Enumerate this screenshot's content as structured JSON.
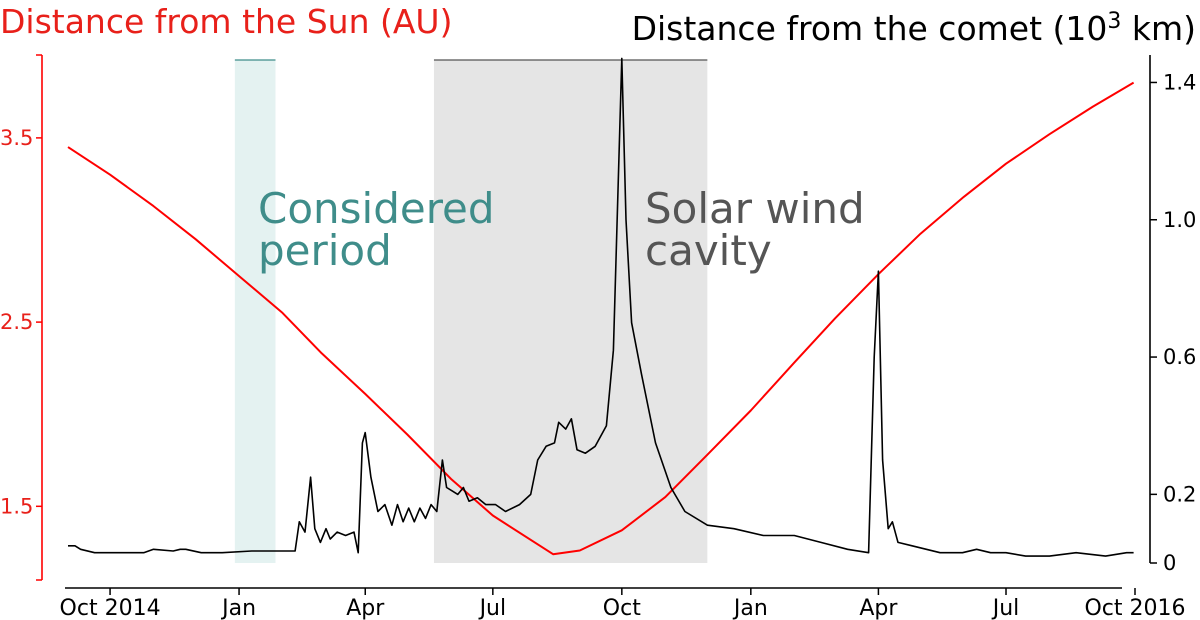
{
  "chart_data": {
    "type": "line",
    "title_left": "Distance from the Sun (AU)",
    "title_right_prefix": "Distance from the comet (10",
    "title_right_exp": "3",
    "title_right_suffix": " km)",
    "left_axis": {
      "range": [
        1.1,
        3.95
      ],
      "ticks": [
        "1.5",
        "2.5",
        "3.5"
      ],
      "color": "#ff0000"
    },
    "right_axis": {
      "range": [
        0,
        1.48
      ],
      "ticks": [
        "0",
        "0.2",
        "0.6",
        "1.0",
        "1.4"
      ],
      "color": "#000000"
    },
    "x_axis": {
      "range": [
        "2014-09-01",
        "2016-10-01"
      ],
      "tick_dates": [
        "2014-10-01",
        "2015-01-01",
        "2015-04-01",
        "2015-07-01",
        "2015-10-01",
        "2016-01-01",
        "2016-04-01",
        "2016-07-01",
        "2016-10-01"
      ],
      "tick_labels": [
        "Oct 2014",
        "Jan",
        "Apr",
        "Jul",
        "Oct",
        "Jan",
        "Apr",
        "Jul",
        "Oct 2016"
      ]
    },
    "shaded_regions": [
      {
        "name": "considered-period",
        "start": "2014-12-29",
        "end": "2015-01-27",
        "color": "#e4f2f1",
        "label_lines": [
          "Considered",
          "period"
        ],
        "label_color": "#3f8d8a"
      },
      {
        "name": "solar-wind-cavity",
        "start": "2015-05-20",
        "end": "2015-12-01",
        "color": "#e5e5e5",
        "label_lines": [
          "Solar wind",
          "cavity"
        ],
        "label_color": "#555555"
      }
    ],
    "series": [
      {
        "axis": "left",
        "color": "#ff0000",
        "points": [
          [
            "2014-09-01",
            3.45
          ],
          [
            "2014-10-01",
            3.3
          ],
          [
            "2014-11-01",
            3.13
          ],
          [
            "2014-12-01",
            2.95
          ],
          [
            "2015-01-01",
            2.75
          ],
          [
            "2015-02-01",
            2.55
          ],
          [
            "2015-03-01",
            2.33
          ],
          [
            "2015-04-01",
            2.11
          ],
          [
            "2015-05-01",
            1.89
          ],
          [
            "2015-06-01",
            1.65
          ],
          [
            "2015-07-01",
            1.45
          ],
          [
            "2015-08-13",
            1.24
          ],
          [
            "2015-09-01",
            1.26
          ],
          [
            "2015-10-01",
            1.37
          ],
          [
            "2015-11-01",
            1.55
          ],
          [
            "2015-12-01",
            1.78
          ],
          [
            "2016-01-01",
            2.02
          ],
          [
            "2016-02-01",
            2.28
          ],
          [
            "2016-03-01",
            2.52
          ],
          [
            "2016-04-01",
            2.76
          ],
          [
            "2016-05-01",
            2.98
          ],
          [
            "2016-06-01",
            3.18
          ],
          [
            "2016-07-01",
            3.36
          ],
          [
            "2016-08-01",
            3.52
          ],
          [
            "2016-09-01",
            3.67
          ],
          [
            "2016-09-30",
            3.8
          ]
        ]
      },
      {
        "axis": "right",
        "color": "#000000",
        "points": [
          [
            "2014-09-01",
            0.05
          ],
          [
            "2014-09-06",
            0.05
          ],
          [
            "2014-09-10",
            0.04
          ],
          [
            "2014-09-20",
            0.03
          ],
          [
            "2014-10-05",
            0.03
          ],
          [
            "2014-10-20",
            0.03
          ],
          [
            "2014-10-25",
            0.03
          ],
          [
            "2014-11-01",
            0.04
          ],
          [
            "2014-11-15",
            0.035
          ],
          [
            "2014-11-20",
            0.04
          ],
          [
            "2014-11-24",
            0.04
          ],
          [
            "2014-12-05",
            0.03
          ],
          [
            "2014-12-20",
            0.03
          ],
          [
            "2015-01-10",
            0.035
          ],
          [
            "2015-01-31",
            0.035
          ],
          [
            "2015-02-10",
            0.035
          ],
          [
            "2015-02-13",
            0.12
          ],
          [
            "2015-02-17",
            0.09
          ],
          [
            "2015-02-21",
            0.25
          ],
          [
            "2015-02-24",
            0.1
          ],
          [
            "2015-02-28",
            0.06
          ],
          [
            "2015-03-04",
            0.1
          ],
          [
            "2015-03-07",
            0.07
          ],
          [
            "2015-03-12",
            0.09
          ],
          [
            "2015-03-18",
            0.08
          ],
          [
            "2015-03-24",
            0.09
          ],
          [
            "2015-03-27",
            0.03
          ],
          [
            "2015-03-30",
            0.35
          ],
          [
            "2015-04-01",
            0.38
          ],
          [
            "2015-04-05",
            0.25
          ],
          [
            "2015-04-10",
            0.15
          ],
          [
            "2015-04-15",
            0.17
          ],
          [
            "2015-04-20",
            0.11
          ],
          [
            "2015-04-24",
            0.17
          ],
          [
            "2015-04-28",
            0.12
          ],
          [
            "2015-05-02",
            0.16
          ],
          [
            "2015-05-06",
            0.12
          ],
          [
            "2015-05-10",
            0.16
          ],
          [
            "2015-05-14",
            0.13
          ],
          [
            "2015-05-18",
            0.17
          ],
          [
            "2015-05-22",
            0.15
          ],
          [
            "2015-05-26",
            0.3
          ],
          [
            "2015-05-29",
            0.22
          ],
          [
            "2015-06-02",
            0.21
          ],
          [
            "2015-06-06",
            0.2
          ],
          [
            "2015-06-10",
            0.22
          ],
          [
            "2015-06-14",
            0.18
          ],
          [
            "2015-06-20",
            0.19
          ],
          [
            "2015-06-26",
            0.17
          ],
          [
            "2015-07-03",
            0.17
          ],
          [
            "2015-07-10",
            0.15
          ],
          [
            "2015-07-20",
            0.17
          ],
          [
            "2015-07-28",
            0.2
          ],
          [
            "2015-08-02",
            0.3
          ],
          [
            "2015-08-08",
            0.34
          ],
          [
            "2015-08-14",
            0.35
          ],
          [
            "2015-08-17",
            0.41
          ],
          [
            "2015-08-22",
            0.39
          ],
          [
            "2015-08-26",
            0.42
          ],
          [
            "2015-08-30",
            0.33
          ],
          [
            "2015-09-05",
            0.32
          ],
          [
            "2015-09-12",
            0.34
          ],
          [
            "2015-09-20",
            0.4
          ],
          [
            "2015-09-25",
            0.62
          ],
          [
            "2015-10-01",
            1.47
          ],
          [
            "2015-10-04",
            1.0
          ],
          [
            "2015-10-08",
            0.7
          ],
          [
            "2015-10-15",
            0.55
          ],
          [
            "2015-10-25",
            0.35
          ],
          [
            "2015-11-05",
            0.22
          ],
          [
            "2015-11-15",
            0.15
          ],
          [
            "2015-12-01",
            0.11
          ],
          [
            "2015-12-20",
            0.1
          ],
          [
            "2016-01-10",
            0.08
          ],
          [
            "2016-02-01",
            0.08
          ],
          [
            "2016-02-20",
            0.06
          ],
          [
            "2016-03-10",
            0.04
          ],
          [
            "2016-03-25",
            0.03
          ],
          [
            "2016-03-29",
            0.6
          ],
          [
            "2016-04-01",
            0.85
          ],
          [
            "2016-04-04",
            0.3
          ],
          [
            "2016-04-08",
            0.1
          ],
          [
            "2016-04-11",
            0.12
          ],
          [
            "2016-04-15",
            0.06
          ],
          [
            "2016-04-25",
            0.05
          ],
          [
            "2016-05-15",
            0.03
          ],
          [
            "2016-05-31",
            0.03
          ],
          [
            "2016-06-10",
            0.04
          ],
          [
            "2016-06-20",
            0.03
          ],
          [
            "2016-07-01",
            0.03
          ],
          [
            "2016-07-15",
            0.02
          ],
          [
            "2016-08-01",
            0.02
          ],
          [
            "2016-08-20",
            0.03
          ],
          [
            "2016-09-10",
            0.02
          ],
          [
            "2016-09-25",
            0.03
          ],
          [
            "2016-09-30",
            0.03
          ]
        ]
      }
    ]
  }
}
